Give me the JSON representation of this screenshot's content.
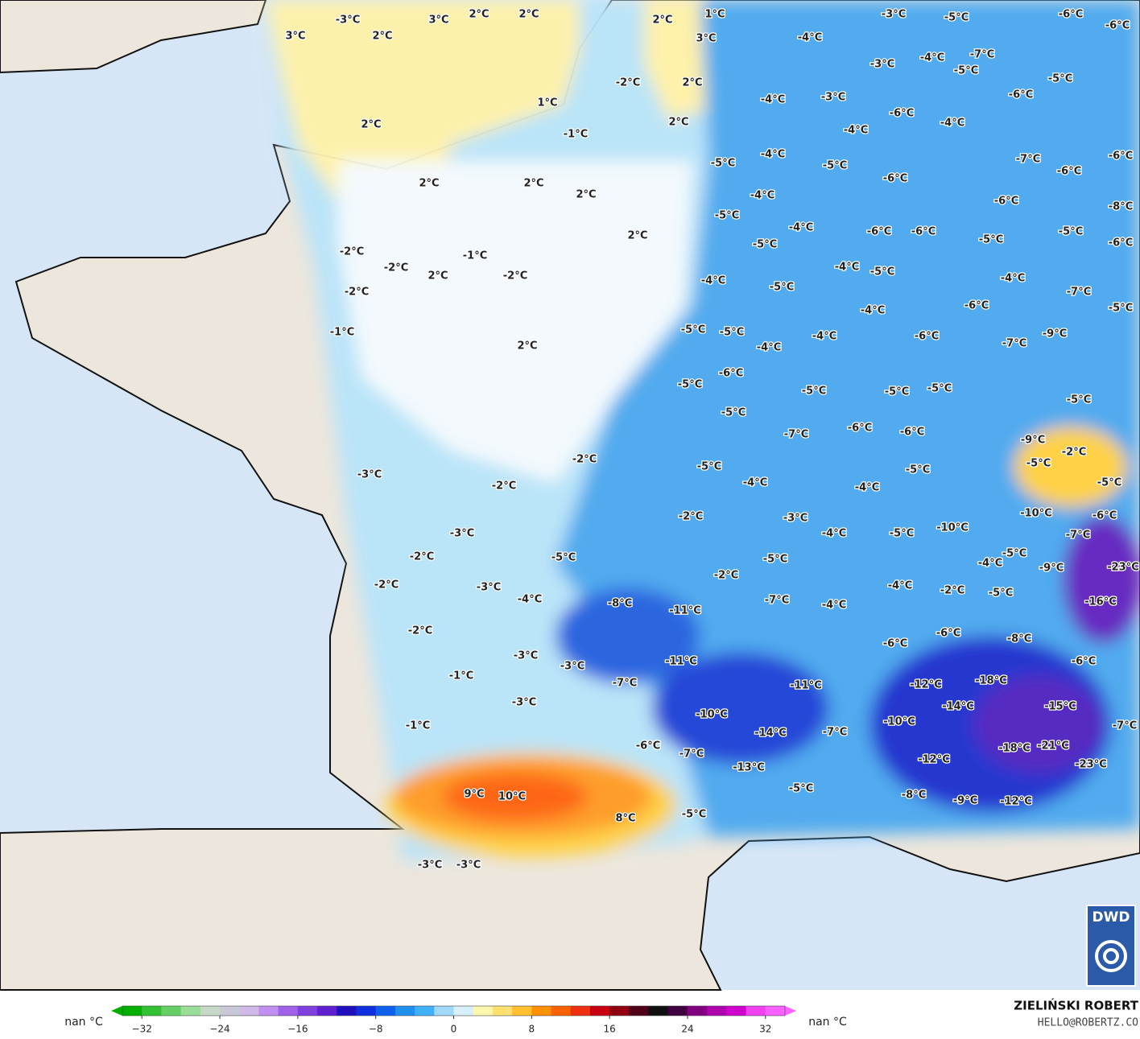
{
  "map_labels": [
    "3°C",
    "-3°C",
    "2°C",
    "3°C",
    "2°C",
    "2°C",
    "2°C",
    "1°C",
    "3°C",
    "2°C",
    "1°C",
    "-2°C",
    "2°C",
    "2°C",
    "-1°C",
    "2°C",
    "2°C",
    "2°C",
    "2°C",
    "-2°C",
    "-2°C",
    "-1°C",
    "2°C",
    "-2°C",
    "-2°C",
    "-1°C",
    "2°C",
    "-3°C",
    "-2°C",
    "-2°C",
    "-3°C",
    "-2°C",
    "-2°C",
    "-3°C",
    "-4°C",
    "-2°C",
    "-3°C",
    "-3°C",
    "-1°C",
    "-3°C",
    "-1°C",
    "9°C",
    "10°C",
    "8°C",
    "-3°C",
    "-3°C",
    "-5°C",
    "-4°C",
    "-3°C",
    "-5°C",
    "-6°C",
    "-6°C",
    "-4°C",
    "-3°C",
    "-3°C",
    "-4°C",
    "-5°C",
    "-7°C",
    "-5°C",
    "-6°C",
    "-6°C",
    "-4°C",
    "-4°C",
    "-4°C",
    "-5°C",
    "-5°C",
    "-7°C",
    "-6°C",
    "-6°C",
    "-6°C",
    "-4°C",
    "-5°C",
    "-4°C",
    "-6°C",
    "-6°C",
    "-6°C",
    "-8°C",
    "-5°C",
    "-5°C",
    "-6°C",
    "-5°C",
    "-4°C",
    "-5°C",
    "-4°C",
    "-5°C",
    "-4°C",
    "-7°C",
    "-6°C",
    "-5°C",
    "-4°C",
    "-5°C",
    "-5°C",
    "-4°C",
    "-6°C",
    "-9°C",
    "-7°C",
    "-4°C",
    "-6°C",
    "-5°C",
    "-5°C",
    "-5°C",
    "-5°C",
    "-5°C",
    "-7°C",
    "-6°C",
    "-6°C",
    "-5°C",
    "-9°C",
    "-2°C",
    "-5°C",
    "-5°C",
    "-4°C",
    "-5°C",
    "-4°C",
    "-5°C",
    "-2°C",
    "-3°C",
    "-10°C",
    "-6°C",
    "-10°C",
    "-5°C",
    "-4°C",
    "-7°C",
    "-5°C",
    "-2°C",
    "-5°C",
    "-5°C",
    "-4°C",
    "-9°C",
    "-23°C",
    "-4°C",
    "-2°C",
    "-5°C",
    "-8°C",
    "-7°C",
    "-4°C",
    "-16°C",
    "-11°C",
    "-6°C",
    "-8°C",
    "-6°C",
    "-11°C",
    "-6°C",
    "-7°C",
    "-11°C",
    "-12°C",
    "-18°C",
    "-14°C",
    "-15°C",
    "-10°C",
    "-14°C",
    "-7°C",
    "-10°C",
    "-7°C",
    "-6°C",
    "-7°C",
    "-18°C",
    "-21°C",
    "-12°C",
    "-23°C",
    "-13°C",
    "-5°C",
    "-8°C",
    "-9°C",
    "-12°C"
  ],
  "colorbar": {
    "range": [
      -34,
      34
    ],
    "left_label": "nan °C",
    "right_label": "nan °C",
    "ticks": [
      {
        "value": -32,
        "label": "−32"
      },
      {
        "value": -24,
        "label": "−24"
      },
      {
        "value": -16,
        "label": "−16"
      },
      {
        "value": -8,
        "label": "−8"
      },
      0,
      8,
      16,
      24,
      32
    ],
    "colors": [
      "#00b000",
      "#33c033",
      "#66d066",
      "#99dd99",
      "#c6d8c6",
      "#c8c8d8",
      "#d0b8e8",
      "#c090f0",
      "#a060e8",
      "#8040e0",
      "#6020d0",
      "#2010c0",
      "#1030e0",
      "#1060f0",
      "#2090f0",
      "#40b0f8",
      "#a0d8fa",
      "#d8f0fc",
      "#fff6b0",
      "#ffe070",
      "#ffc030",
      "#ff9000",
      "#ff6000",
      "#f03010",
      "#c80010",
      "#900010",
      "#500018",
      "#101010",
      "#400040",
      "#800080",
      "#b000b0",
      "#d000d0",
      "#f040f0",
      "#ff60ff"
    ]
  },
  "credit": {
    "name": "ZIELIŃSKI ROBERT",
    "contact": "HELLO@ROBERTZ.CO"
  },
  "logo": {
    "text": "DWD"
  }
}
